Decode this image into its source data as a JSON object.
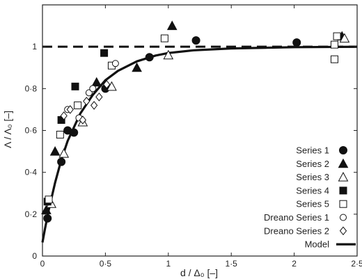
{
  "chart_data": {
    "type": "scatter",
    "title": "",
    "xlabel": "d / Δ₀ [–]",
    "ylabel": "Λ / Λ₀ [–]",
    "xlim": [
      0,
      2.5
    ],
    "ylim": [
      0,
      1.2
    ],
    "x_ticks": [
      "0",
      "0·5",
      "1",
      "1·5",
      "2",
      "2·5"
    ],
    "x_tick_values": [
      0,
      0.5,
      1,
      1.5,
      2,
      2.5
    ],
    "y_ticks": [
      "0",
      "0·2",
      "0·4",
      "0·6",
      "0·8",
      "1"
    ],
    "y_tick_values": [
      0,
      0.2,
      0.4,
      0.6,
      0.8,
      1.0
    ],
    "grid": false,
    "legend_position": "bottom-right",
    "reference_line": {
      "y": 1.0,
      "style": "dashed"
    },
    "series": [
      {
        "name": "Series 1",
        "marker": "circle-filled",
        "points": [
          [
            0.04,
            0.18
          ],
          [
            0.15,
            0.45
          ],
          [
            0.2,
            0.6
          ],
          [
            0.25,
            0.59
          ],
          [
            0.5,
            0.8
          ],
          [
            0.85,
            0.95
          ],
          [
            1.22,
            1.03
          ],
          [
            2.02,
            1.02
          ]
        ]
      },
      {
        "name": "Series 2",
        "marker": "triangle-filled",
        "points": [
          [
            0.03,
            0.22
          ],
          [
            0.1,
            0.5
          ],
          [
            0.43,
            0.83
          ],
          [
            0.75,
            0.9
          ],
          [
            1.03,
            1.1
          ],
          [
            2.38,
            1.05
          ]
        ]
      },
      {
        "name": "Series 3",
        "marker": "triangle-open",
        "points": [
          [
            0.07,
            0.25
          ],
          [
            0.17,
            0.49
          ],
          [
            0.32,
            0.64
          ],
          [
            0.55,
            0.81
          ],
          [
            1.0,
            0.96
          ],
          [
            2.4,
            1.04
          ]
        ]
      },
      {
        "name": "Series 4",
        "marker": "square-filled",
        "points": [
          [
            0.04,
            0.26
          ],
          [
            0.15,
            0.65
          ],
          [
            0.26,
            0.81
          ],
          [
            0.49,
            0.97
          ]
        ]
      },
      {
        "name": "Series 5",
        "marker": "square-open",
        "points": [
          [
            0.05,
            0.27
          ],
          [
            0.14,
            0.58
          ],
          [
            0.28,
            0.72
          ],
          [
            0.55,
            0.91
          ],
          [
            0.97,
            1.04
          ],
          [
            2.32,
            1.01
          ],
          [
            2.34,
            1.05
          ],
          [
            2.32,
            0.94
          ]
        ]
      },
      {
        "name": "Dreano Series 1",
        "marker": "circle-open",
        "points": [
          [
            0.2,
            0.7
          ],
          [
            0.29,
            0.66
          ],
          [
            0.37,
            0.78
          ],
          [
            0.4,
            0.8
          ],
          [
            0.58,
            0.92
          ]
        ]
      },
      {
        "name": "Dreano Series 2",
        "marker": "diamond-open",
        "points": [
          [
            0.17,
            0.67
          ],
          [
            0.22,
            0.7
          ],
          [
            0.32,
            0.65
          ],
          [
            0.35,
            0.74
          ],
          [
            0.41,
            0.72
          ],
          [
            0.45,
            0.76
          ],
          [
            0.51,
            0.82
          ]
        ]
      },
      {
        "name": "Model",
        "marker": "line",
        "curve": [
          [
            0.0,
            0.065
          ],
          [
            0.02,
            0.13
          ],
          [
            0.05,
            0.22
          ],
          [
            0.1,
            0.35
          ],
          [
            0.15,
            0.46
          ],
          [
            0.2,
            0.55
          ],
          [
            0.3,
            0.68
          ],
          [
            0.4,
            0.77
          ],
          [
            0.5,
            0.84
          ],
          [
            0.6,
            0.885
          ],
          [
            0.75,
            0.93
          ],
          [
            0.9,
            0.958
          ],
          [
            1.0,
            0.97
          ],
          [
            1.2,
            0.983
          ],
          [
            1.5,
            0.992
          ],
          [
            2.0,
            0.998
          ],
          [
            2.5,
            1.0
          ]
        ]
      }
    ]
  }
}
